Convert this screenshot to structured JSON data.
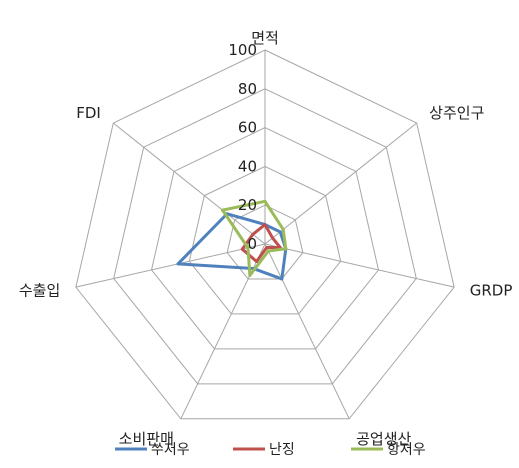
{
  "chart_data": {
    "type": "radar",
    "axes": [
      "면적",
      "상주인구",
      "GRDP",
      "공업생산",
      "소비판매",
      "수출입",
      "FDI"
    ],
    "r_ticks": [
      0,
      20,
      40,
      60,
      80,
      100
    ],
    "r_tick_labels": [
      "0",
      "20",
      "40",
      "60",
      "80",
      "100"
    ],
    "rlim": [
      0,
      100
    ],
    "grid": true,
    "legend_position": "bottom",
    "series": [
      {
        "name": "쑤저우",
        "color": "#4F81BD",
        "values": [
          10,
          10,
          11,
          20,
          14,
          46,
          25
        ]
      },
      {
        "name": "난징",
        "color": "#C0504D",
        "values": [
          10,
          5,
          8,
          2,
          10,
          12,
          8
        ]
      },
      {
        "name": "항저우",
        "color": "#9BBB59",
        "values": [
          22,
          12,
          11,
          4,
          18,
          9,
          28
        ]
      }
    ]
  }
}
